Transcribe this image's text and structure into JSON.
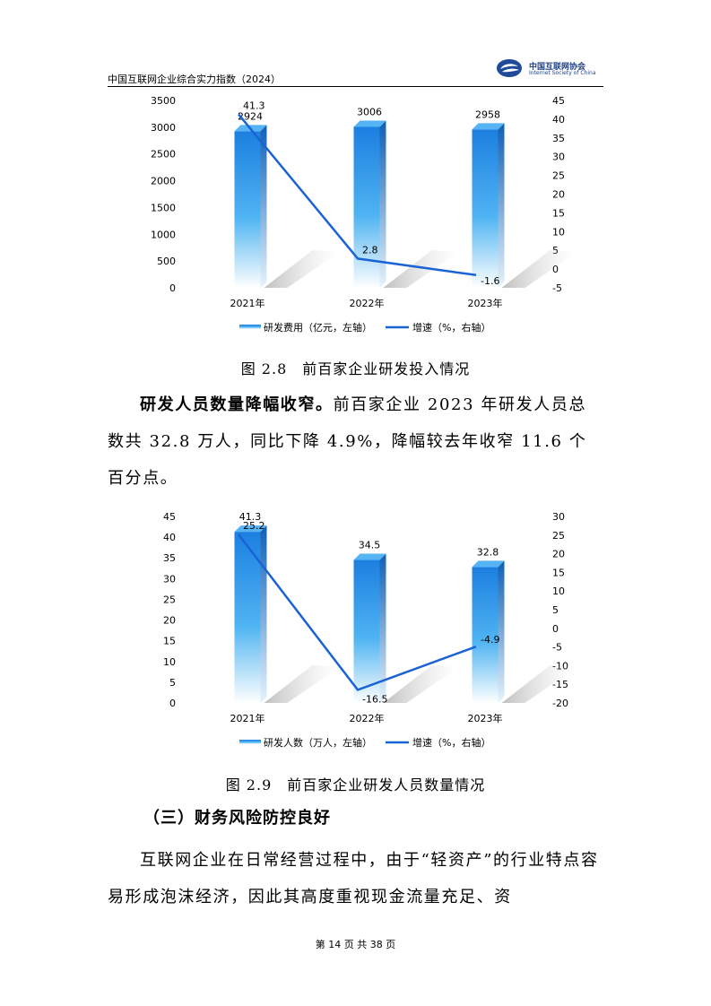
{
  "header": {
    "title": "中国互联网企业综合实力指数（2024）",
    "logo_cn": "中国互联网协会",
    "logo_en": "Internet Society of China",
    "logo_icon": "isc-logo-icon"
  },
  "charts": [
    {
      "caption": "图 2.8　前百家企业研发投入情况",
      "chart_data": {
        "type": "bar",
        "categories": [
          "2021年",
          "2022年",
          "2023年"
        ],
        "series": [
          {
            "name": "研发费用（亿元，左轴）",
            "type": "bar",
            "axis": "left",
            "values": [
              2924,
              3006,
              2958
            ]
          },
          {
            "name": "增速（%，右轴）",
            "type": "line",
            "axis": "right",
            "values": [
              41.3,
              2.8,
              -1.6
            ]
          }
        ],
        "left_axis": {
          "min": 0,
          "max": 3500,
          "ticks": [
            0,
            500,
            1000,
            1500,
            2000,
            2500,
            3000,
            3500
          ]
        },
        "right_axis": {
          "min": -5,
          "max": 45,
          "ticks": [
            -5,
            0,
            5,
            10,
            15,
            20,
            25,
            30,
            35,
            40,
            45
          ]
        },
        "legend": "bottom",
        "grid": false
      }
    },
    {
      "caption": "图 2.9　前百家企业研发人员数量情况",
      "chart_data": {
        "type": "bar",
        "categories": [
          "2021年",
          "2022年",
          "2023年"
        ],
        "series": [
          {
            "name": "研发人数（万人，左轴）",
            "type": "bar",
            "axis": "left",
            "values": [
              41.3,
              34.5,
              32.8
            ]
          },
          {
            "name": "增速（%，右轴）",
            "type": "line",
            "axis": "right",
            "values": [
              25.2,
              -16.5,
              -4.9
            ]
          }
        ],
        "left_axis": {
          "min": 0,
          "max": 45,
          "ticks": [
            0,
            5,
            10,
            15,
            20,
            25,
            30,
            35,
            40,
            45
          ]
        },
        "right_axis": {
          "min": -20,
          "max": 30,
          "ticks": [
            -20,
            -15,
            -10,
            -5,
            0,
            5,
            10,
            15,
            20,
            25,
            30
          ]
        },
        "legend": "bottom",
        "grid": false
      }
    }
  ],
  "para1": {
    "bold": "研发人员数量降幅收窄。",
    "text": "前百家企业 2023 年研发人员总数共 32.8 万人，同比下降 4.9%，降幅较去年收窄 11.6 个百分点。"
  },
  "section_heading": "（三）财务风险防控良好",
  "para2": {
    "text": "互联网企业在日常经营过程中，由于“轻资产”的行业特点容易形成泡沫经济，因此其高度重视现金流量充足、资"
  },
  "footer": "第 14 页 共 38 页"
}
